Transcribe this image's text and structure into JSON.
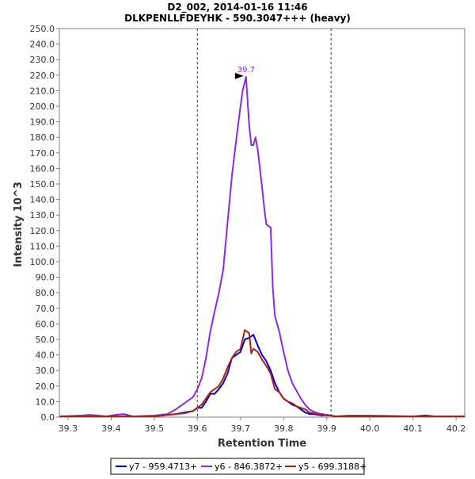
{
  "chart_data": {
    "type": "line",
    "title": "D2_002, 2014-01-16 11:46",
    "subtitle": "DLKPENLLFDEYHK - 590.3047+++ (heavy)",
    "xlabel": "Retention Time",
    "ylabel": "Intensity 10^3",
    "xlim": [
      39.28,
      40.22
    ],
    "ylim": [
      0,
      250
    ],
    "xticks": [
      "39.3",
      "39.4",
      "39.5",
      "39.6",
      "39.7",
      "39.8",
      "39.9",
      "40.0",
      "40.1",
      "40.2"
    ],
    "yticks": [
      "0.0",
      "10.0",
      "20.0",
      "30.0",
      "40.0",
      "50.0",
      "60.0",
      "70.0",
      "80.0",
      "90.0",
      "100.0",
      "110.0",
      "120.0",
      "130.0",
      "140.0",
      "150.0",
      "160.0",
      "170.0",
      "180.0",
      "190.0",
      "200.0",
      "210.0",
      "220.0",
      "230.0",
      "240.0",
      "250.0"
    ],
    "grid": false,
    "vlines": [
      39.6,
      39.91
    ],
    "annotation": {
      "label": "39.7",
      "x": 39.713,
      "y": 219,
      "color": "#8a2be2"
    },
    "legend_position": "bottom",
    "series": [
      {
        "name": "y7 - 959.4713+",
        "color": "#0000dd",
        "x": [
          39.28,
          39.5,
          39.55,
          39.57,
          39.59,
          39.6,
          39.61,
          39.62,
          39.63,
          39.64,
          39.65,
          39.66,
          39.67,
          39.68,
          39.69,
          39.7,
          39.71,
          39.72,
          39.73,
          39.74,
          39.75,
          39.76,
          39.77,
          39.78,
          39.79,
          39.8,
          39.81,
          39.82,
          39.83,
          39.84,
          39.85,
          39.86,
          39.87,
          39.88,
          39.89,
          39.9,
          39.91,
          39.92,
          39.94,
          40.0,
          40.05,
          40.1,
          40.13,
          40.15,
          40.22
        ],
        "values": [
          0.5,
          0.5,
          2,
          3,
          4,
          6,
          6,
          10,
          15,
          15,
          18,
          22,
          28,
          38,
          40,
          42,
          50,
          51,
          53,
          46,
          40,
          36,
          30,
          22,
          16,
          12,
          10,
          8,
          7,
          5,
          3,
          2,
          2,
          1.5,
          1,
          1.5,
          1,
          0.5,
          0.5,
          0.5,
          0.5,
          0.5,
          1,
          0.5,
          0.5
        ]
      },
      {
        "name": "y6 - 846.3872+",
        "color": "#8a2be2",
        "x": [
          39.28,
          39.33,
          39.35,
          39.37,
          39.39,
          39.41,
          39.43,
          39.45,
          39.5,
          39.53,
          39.55,
          39.57,
          39.59,
          39.6,
          39.61,
          39.62,
          39.63,
          39.64,
          39.65,
          39.66,
          39.67,
          39.68,
          39.69,
          39.7,
          39.705,
          39.713,
          39.72,
          39.725,
          39.73,
          39.735,
          39.74,
          39.75,
          39.755,
          39.76,
          39.77,
          39.775,
          39.78,
          39.79,
          39.8,
          39.81,
          39.82,
          39.83,
          39.84,
          39.85,
          39.86,
          39.87,
          39.88,
          39.89,
          39.9,
          39.91,
          39.92,
          39.95,
          40.0,
          40.1,
          40.22
        ],
        "values": [
          0.5,
          1,
          1.5,
          1,
          0.5,
          1.5,
          2,
          0.5,
          1,
          2,
          5,
          9,
          13,
          18,
          25,
          38,
          55,
          68,
          80,
          95,
          125,
          155,
          178,
          200,
          210,
          219,
          188,
          175,
          175,
          180,
          172,
          148,
          135,
          124,
          122,
          83,
          65,
          55,
          42,
          30,
          22,
          17,
          12,
          8,
          5,
          3.5,
          2.5,
          2,
          1.5,
          1,
          0.5,
          1,
          1,
          0.5,
          0.5
        ]
      },
      {
        "name": "y5 - 699.3188+",
        "color": "#aa2211",
        "x": [
          39.28,
          39.5,
          39.55,
          39.57,
          39.59,
          39.6,
          39.61,
          39.62,
          39.63,
          39.64,
          39.65,
          39.66,
          39.67,
          39.68,
          39.69,
          39.7,
          39.71,
          39.72,
          39.725,
          39.73,
          39.74,
          39.75,
          39.76,
          39.77,
          39.78,
          39.79,
          39.8,
          39.81,
          39.82,
          39.83,
          39.84,
          39.85,
          39.86,
          39.87,
          39.88,
          39.89,
          39.9,
          39.91,
          39.92,
          39.95,
          40.0,
          40.22
        ],
        "values": [
          0.5,
          0.5,
          2,
          2.5,
          4,
          6,
          8,
          12,
          16,
          18,
          20,
          25,
          32,
          38,
          42,
          44,
          56,
          54,
          41,
          44,
          42,
          37,
          33,
          28,
          18,
          16,
          12,
          10,
          9,
          7,
          6,
          5,
          3,
          2.5,
          2,
          1.5,
          1,
          1,
          0.5,
          0.5,
          0.5,
          0.5
        ]
      }
    ]
  }
}
